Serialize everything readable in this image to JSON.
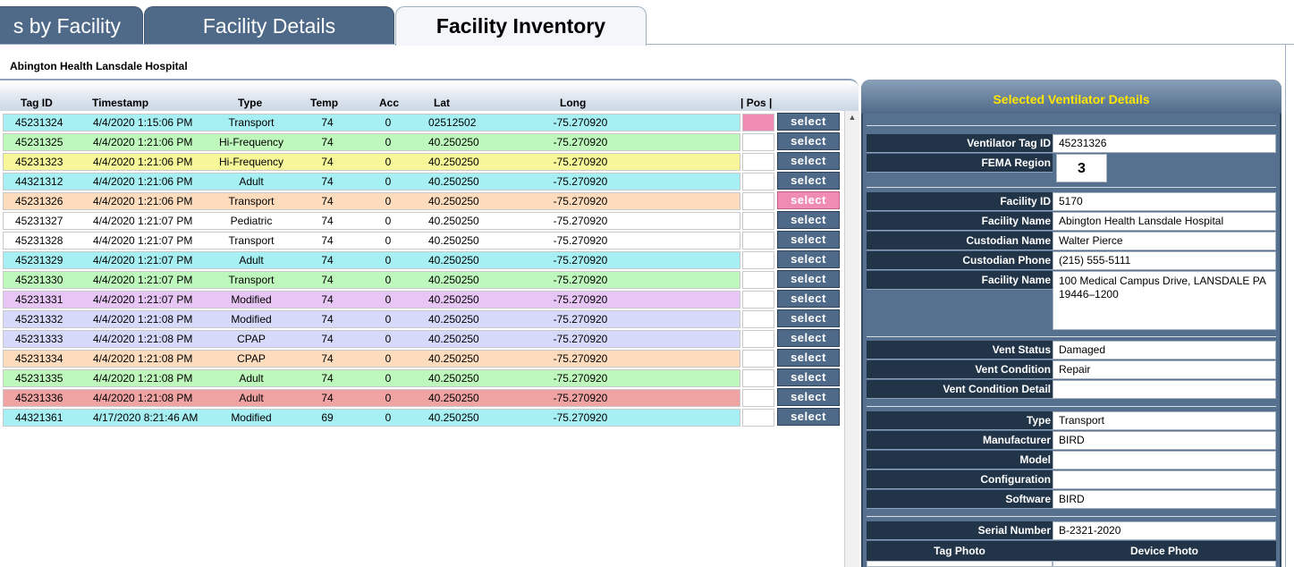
{
  "tabs": [
    {
      "label": "s by Facility"
    },
    {
      "label": "Facility Details"
    },
    {
      "label": "Facility Inventory"
    }
  ],
  "facility_title": "Abington Health Lansdale Hospital",
  "table": {
    "headers": {
      "tag_id": "Tag ID",
      "timestamp": "Timestamp",
      "type": "Type",
      "temp": "Temp",
      "acc": "Acc",
      "lat": "Lat",
      "long": "Long",
      "pos": "| Pos  |"
    },
    "select_label": "select",
    "rows": [
      {
        "tag_id": "45231324",
        "timestamp": "4/4/2020 1:15:06 PM",
        "type": "Transport",
        "temp": "74",
        "acc": "0",
        "lat": "02512502",
        "long": "-75.270920",
        "color": "#a6eff3"
      },
      {
        "tag_id": "45231325",
        "timestamp": "4/4/2020 1:21:06 PM",
        "type": "Hi-Frequency",
        "temp": "74",
        "acc": "0",
        "lat": "40.250250",
        "long": "-75.270920",
        "color": "#bff8bc"
      },
      {
        "tag_id": "45231323",
        "timestamp": "4/4/2020 1:21:06 PM",
        "type": "Hi-Frequency",
        "temp": "74",
        "acc": "0",
        "lat": "40.250250",
        "long": "-75.270920",
        "color": "#f7f79a"
      },
      {
        "tag_id": "44321312",
        "timestamp": "4/4/2020 1:21:06 PM",
        "type": "Adult",
        "temp": "74",
        "acc": "0",
        "lat": "40.250250",
        "long": "-75.270920",
        "color": "#a6eff3"
      },
      {
        "tag_id": "45231326",
        "timestamp": "4/4/2020 1:21:06 PM",
        "type": "Transport",
        "temp": "74",
        "acc": "0",
        "lat": "40.250250",
        "long": "-75.270920",
        "color": "#fcdcbc"
      },
      {
        "tag_id": "45231327",
        "timestamp": "4/4/2020 1:21:07 PM",
        "type": "Pediatric",
        "temp": "74",
        "acc": "0",
        "lat": "40.250250",
        "long": "-75.270920",
        "color": "#ffffff"
      },
      {
        "tag_id": "45231328",
        "timestamp": "4/4/2020 1:21:07 PM",
        "type": "Transport",
        "temp": "74",
        "acc": "0",
        "lat": "40.250250",
        "long": "-75.270920",
        "color": "#ffffff"
      },
      {
        "tag_id": "45231329",
        "timestamp": "4/4/2020 1:21:07 PM",
        "type": "Adult",
        "temp": "74",
        "acc": "0",
        "lat": "40.250250",
        "long": "-75.270920",
        "color": "#a6eff3"
      },
      {
        "tag_id": "45231330",
        "timestamp": "4/4/2020 1:21:07 PM",
        "type": "Transport",
        "temp": "74",
        "acc": "0",
        "lat": "40.250250",
        "long": "-75.270920",
        "color": "#bff8bc"
      },
      {
        "tag_id": "45231331",
        "timestamp": "4/4/2020 1:21:07 PM",
        "type": "Modified",
        "temp": "74",
        "acc": "0",
        "lat": "40.250250",
        "long": "-75.270920",
        "color": "#e7c6f5"
      },
      {
        "tag_id": "45231332",
        "timestamp": "4/4/2020 1:21:08 PM",
        "type": "Modified",
        "temp": "74",
        "acc": "0",
        "lat": "40.250250",
        "long": "-75.270920",
        "color": "#d7d9fb"
      },
      {
        "tag_id": "45231333",
        "timestamp": "4/4/2020 1:21:08 PM",
        "type": "CPAP",
        "temp": "74",
        "acc": "0",
        "lat": "40.250250",
        "long": "-75.270920",
        "color": "#d7d9fb"
      },
      {
        "tag_id": "45231334",
        "timestamp": "4/4/2020 1:21:08 PM",
        "type": "CPAP",
        "temp": "74",
        "acc": "0",
        "lat": "40.250250",
        "long": "-75.270920",
        "color": "#fcdcbc"
      },
      {
        "tag_id": "45231335",
        "timestamp": "4/4/2020 1:21:08 PM",
        "type": "Adult",
        "temp": "74",
        "acc": "0",
        "lat": "40.250250",
        "long": "-75.270920",
        "color": "#bff8bc"
      },
      {
        "tag_id": "45231336",
        "timestamp": "4/4/2020 1:21:08 PM",
        "type": "Adult",
        "temp": "74",
        "acc": "0",
        "lat": "40.250250",
        "long": "-75.270920",
        "color": "#f0a3a3"
      },
      {
        "tag_id": "44321361",
        "timestamp": "4/17/2020 8:21:46 AM",
        "type": "Modified",
        "temp": "69",
        "acc": "0",
        "lat": "40.250250",
        "long": "-75.270920",
        "color": "#a6eff3"
      }
    ]
  },
  "details": {
    "title": "Selected Ventilator Details",
    "ventilator_tag_id": {
      "label": "Ventilator Tag ID",
      "value": "45231326"
    },
    "fema_region": {
      "label": "FEMA Region",
      "value": "3"
    },
    "facility_id": {
      "label": "Facility ID",
      "value": "5170"
    },
    "facility_name": {
      "label": "Facility Name",
      "value": "Abington Health Lansdale Hospital"
    },
    "custodian_name": {
      "label": "Custodian Name",
      "value": "Walter Pierce"
    },
    "custodian_phone": {
      "label": "Custodian Phone",
      "value": "(215) 555-5111"
    },
    "facility_address": {
      "label": "Facility Name",
      "value": "100 Medical Campus Drive, LANSDALE PA 19446–1200"
    },
    "vent_status": {
      "label": "Vent Status",
      "value": "Damaged"
    },
    "vent_condition": {
      "label": "Vent Condition",
      "value": "Repair"
    },
    "vent_condition_detail": {
      "label": "Vent Condition Detail",
      "value": ""
    },
    "type": {
      "label": "Type",
      "value": "Transport"
    },
    "manufacturer": {
      "label": "Manufacturer",
      "value": "BIRD"
    },
    "model": {
      "label": "Model",
      "value": ""
    },
    "configuration": {
      "label": "Configuration",
      "value": ""
    },
    "software": {
      "label": "Software",
      "value": "BIRD"
    },
    "serial_number": {
      "label": "Serial Number",
      "value": "B-2321-2020"
    },
    "tag_photo": "Tag Photo",
    "device_photo": "Device  Photo"
  },
  "colors": {
    "accent_highlight": "#f08cb4",
    "selected_pos": "#f08cb4"
  }
}
